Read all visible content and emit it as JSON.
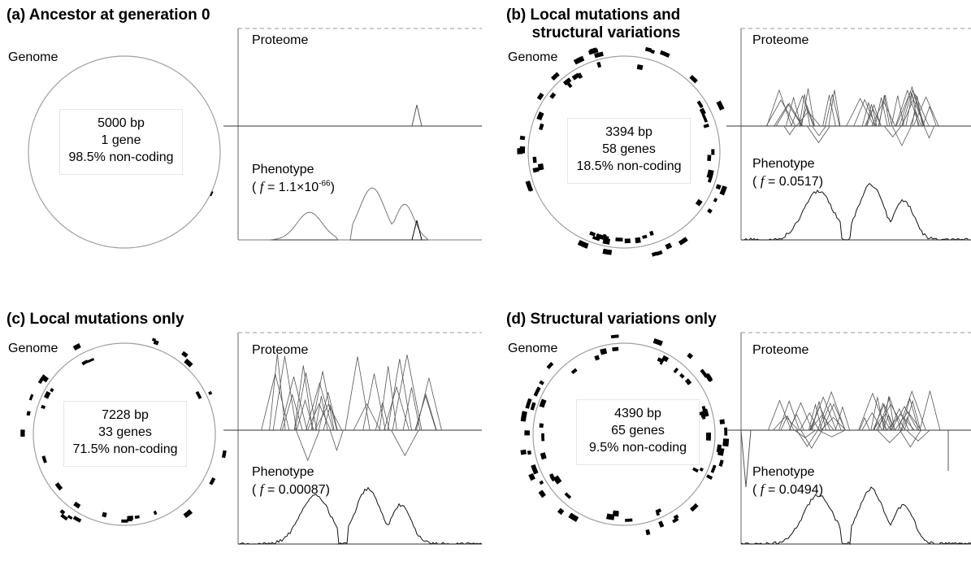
{
  "panels": [
    {
      "title": "(a) Ancestor at generation 0",
      "genome_label": "Genome",
      "info": [
        "5000 bp",
        "1 gene",
        "98.5% non-coding"
      ],
      "proteome_label": "Proteome",
      "phenotype_label": "Phenotype",
      "fitness": {
        "open": "( ",
        "symbol": "f",
        "eq": " = 1.1×10",
        "exp": "-66",
        "close": ")"
      }
    },
    {
      "title": "(b) Local mutations and\n      structural variations",
      "genome_label": "Genome",
      "info": [
        "3394 bp",
        "58 genes",
        "18.5% non-coding"
      ],
      "proteome_label": "Proteome",
      "phenotype_label": "Phenotype",
      "fitness": {
        "open": "( ",
        "symbol": "f",
        "eq": " = 0.0517",
        "exp": "",
        "close": ")"
      }
    },
    {
      "title": "(c) Local mutations only",
      "genome_label": "Genome",
      "info": [
        "7228 bp",
        "33 genes",
        "71.5% non-coding"
      ],
      "proteome_label": "Proteome",
      "phenotype_label": "Phenotype",
      "fitness": {
        "open": "( ",
        "symbol": "f",
        "eq": " = 0.00087",
        "exp": "",
        "close": ")"
      }
    },
    {
      "title": "(d) Structural variations only",
      "genome_label": "Genome",
      "info": [
        "4390 bp",
        "65 genes",
        "9.5% non-coding"
      ],
      "proteome_label": "Proteome",
      "phenotype_label": "Phenotype",
      "fitness": {
        "open": "( ",
        "symbol": "f",
        "eq": " = 0.0494",
        "exp": "",
        "close": ")"
      }
    }
  ]
}
